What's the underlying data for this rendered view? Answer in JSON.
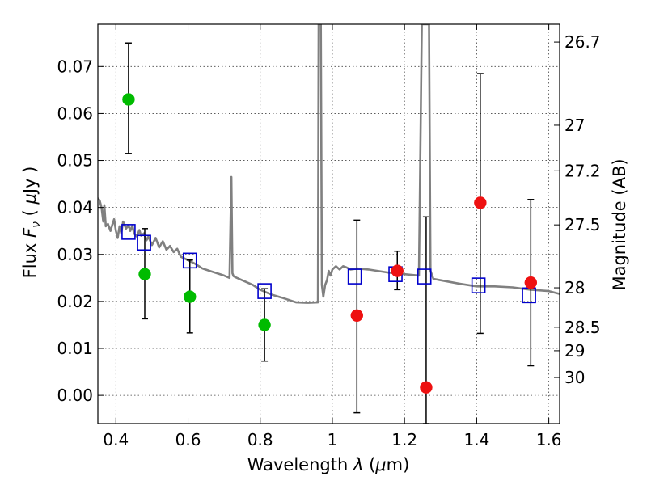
{
  "colors": {
    "model": "#808080",
    "green": "#00bb00",
    "red": "#ee1111",
    "square": "#0000cc",
    "error": "#000000",
    "grid": "#444444"
  },
  "chart_data": {
    "type": "scatter",
    "xlabel": "Wavelength  λ (μm)",
    "ylabel": "Flux  F_ν  ( μJy )",
    "ylabel_right": "Magnitude (AB)",
    "xlim": [
      0.35,
      1.63
    ],
    "ylim": [
      -0.006,
      0.079
    ],
    "grid": true,
    "x_ticks": [
      {
        "value": 0.4,
        "label": "0.4"
      },
      {
        "value": 0.6,
        "label": "0.6"
      },
      {
        "value": 0.8,
        "label": "0.8"
      },
      {
        "value": 1.0,
        "label": "1"
      },
      {
        "value": 1.2,
        "label": "1.2"
      },
      {
        "value": 1.4,
        "label": "1.4"
      },
      {
        "value": 1.6,
        "label": "1.6"
      }
    ],
    "y_ticks": [
      {
        "value": 0.0,
        "label": "0.00"
      },
      {
        "value": 0.01,
        "label": "0.01"
      },
      {
        "value": 0.02,
        "label": "0.02"
      },
      {
        "value": 0.03,
        "label": "0.03"
      },
      {
        "value": 0.04,
        "label": "0.04"
      },
      {
        "value": 0.05,
        "label": "0.05"
      },
      {
        "value": 0.06,
        "label": "0.06"
      },
      {
        "value": 0.07,
        "label": "0.07"
      }
    ],
    "right_ticks": [
      {
        "label": "26.7",
        "flux": 0.0752
      },
      {
        "label": "27",
        "flux": 0.0575
      },
      {
        "label": "27.2",
        "flux": 0.0478
      },
      {
        "label": "27.5",
        "flux": 0.0363
      },
      {
        "label": "28",
        "flux": 0.0229
      },
      {
        "label": "28.5",
        "flux": 0.0145
      },
      {
        "label": "29",
        "flux": 0.0095
      },
      {
        "label": "30",
        "flux": 0.0038
      }
    ],
    "series": [
      {
        "name": "model SED",
        "kind": "line",
        "x": [
          0.35,
          0.355,
          0.36,
          0.365,
          0.368,
          0.372,
          0.378,
          0.385,
          0.39,
          0.395,
          0.4,
          0.405,
          0.41,
          0.415,
          0.42,
          0.428,
          0.435,
          0.44,
          0.446,
          0.45,
          0.458,
          0.465,
          0.47,
          0.478,
          0.485,
          0.49,
          0.5,
          0.51,
          0.52,
          0.53,
          0.54,
          0.55,
          0.56,
          0.57,
          0.58,
          0.6,
          0.62,
          0.64,
          0.66,
          0.68,
          0.7,
          0.715,
          0.72,
          0.723,
          0.726,
          0.73,
          0.75,
          0.78,
          0.8,
          0.83,
          0.86,
          0.9,
          0.93,
          0.96,
          0.962,
          0.965,
          0.968,
          0.971,
          0.975,
          0.98,
          0.985,
          0.99,
          0.995,
          1.0,
          1.01,
          1.02,
          1.03,
          1.04,
          1.05,
          1.07,
          1.1,
          1.15,
          1.2,
          1.24,
          1.248,
          1.252,
          1.256,
          1.262,
          1.268,
          1.272,
          1.28,
          1.3,
          1.35,
          1.4,
          1.45,
          1.5,
          1.55,
          1.6,
          1.63
        ],
        "y": [
          0.042,
          0.0415,
          0.04,
          0.037,
          0.0405,
          0.036,
          0.0365,
          0.035,
          0.0363,
          0.0375,
          0.035,
          0.0335,
          0.036,
          0.0345,
          0.037,
          0.0355,
          0.0362,
          0.035,
          0.0362,
          0.0345,
          0.0338,
          0.0352,
          0.034,
          0.0345,
          0.033,
          0.0338,
          0.032,
          0.0335,
          0.0315,
          0.0328,
          0.031,
          0.0318,
          0.0305,
          0.0312,
          0.0295,
          0.0288,
          0.028,
          0.027,
          0.0265,
          0.026,
          0.0255,
          0.025,
          0.0465,
          0.026,
          0.0254,
          0.0252,
          0.0245,
          0.0235,
          0.0225,
          0.0215,
          0.0208,
          0.0198,
          0.0197,
          0.0198,
          0.079,
          0.079,
          0.079,
          0.0235,
          0.021,
          0.0235,
          0.0245,
          0.0265,
          0.0255,
          0.0268,
          0.0275,
          0.0268,
          0.0275,
          0.0272,
          0.0268,
          0.027,
          0.0268,
          0.0262,
          0.0258,
          0.0255,
          0.079,
          0.079,
          0.079,
          0.079,
          0.079,
          0.0265,
          0.0248,
          0.0245,
          0.0238,
          0.0232,
          0.0232,
          0.023,
          0.0225,
          0.0222,
          0.0216
        ]
      },
      {
        "name": "model photometry",
        "kind": "square",
        "x": [
          0.435,
          0.478,
          0.605,
          0.812,
          1.062,
          1.175,
          1.255,
          1.405,
          1.545
        ],
        "y": [
          0.0348,
          0.0325,
          0.0287,
          0.0222,
          0.0253,
          0.0258,
          0.0253,
          0.0234,
          0.0213
        ]
      },
      {
        "name": "observed (green)",
        "kind": "circle",
        "color": "green",
        "x": [
          0.435,
          0.48,
          0.605,
          0.812
        ],
        "y": [
          0.063,
          0.0258,
          0.021,
          0.015
        ],
        "yerr_low": [
          0.0515,
          0.0163,
          0.0133,
          0.0073
        ],
        "yerr_high": [
          0.075,
          0.0355,
          0.0288,
          0.0227
        ]
      },
      {
        "name": "observed (red)",
        "kind": "circle",
        "color": "red",
        "x": [
          1.068,
          1.18,
          1.26,
          1.41,
          1.55
        ],
        "y": [
          0.017,
          0.0265,
          0.0017,
          0.041,
          0.024
        ],
        "yerr_low": [
          -0.0037,
          0.0225,
          -0.006,
          0.0132,
          0.0063
        ],
        "yerr_high": [
          0.0373,
          0.0307,
          0.038,
          0.0685,
          0.0417
        ]
      }
    ]
  }
}
